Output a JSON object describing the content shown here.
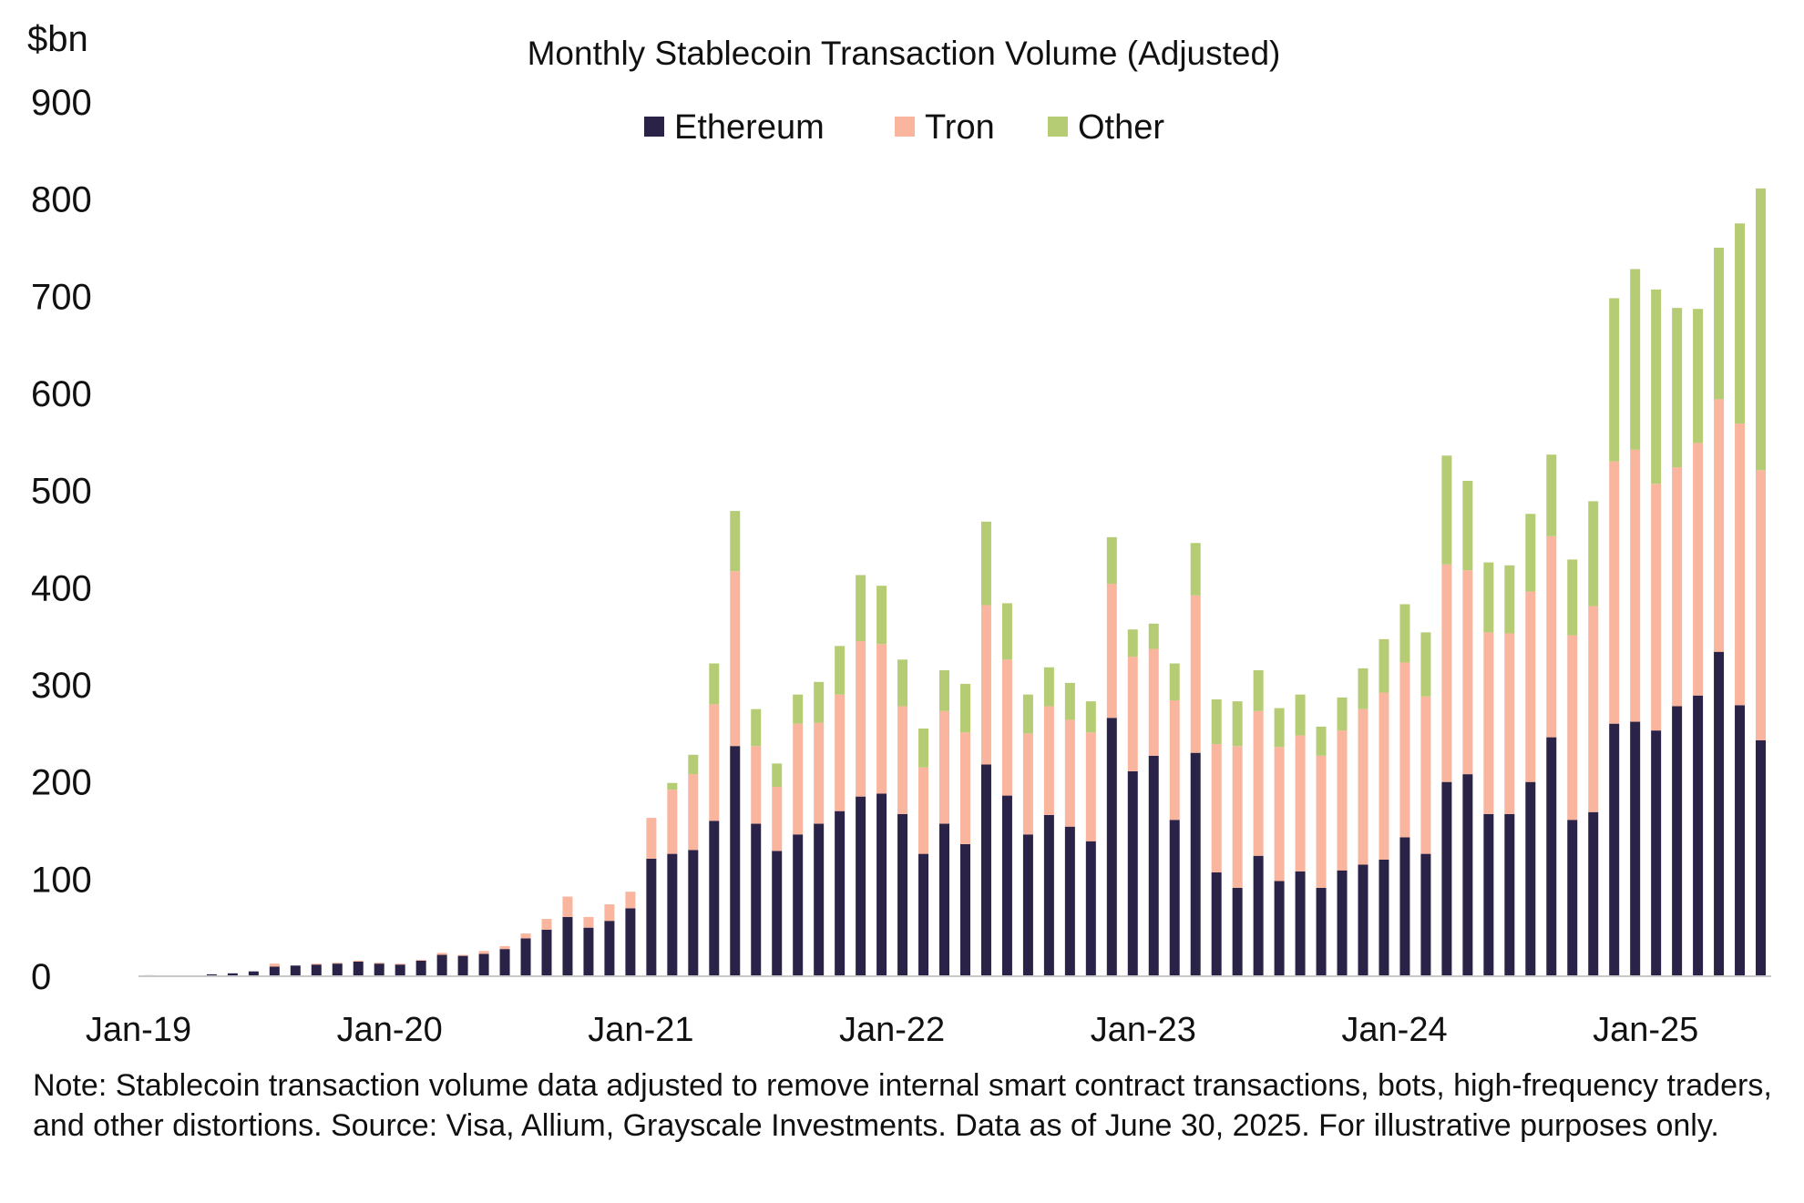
{
  "chart_data": {
    "type": "bar",
    "stacked": true,
    "title": "Monthly Stablecoin Transaction Volume (Adjusted)",
    "unit_label": "$bn",
    "xlabel": "",
    "ylabel": "",
    "ylim": [
      0,
      900
    ],
    "yticks": [
      0,
      100,
      200,
      300,
      400,
      500,
      600,
      700,
      800,
      900
    ],
    "x_tick_labels": [
      "Jan-19",
      "Jan-20",
      "Jan-21",
      "Jan-22",
      "Jan-23",
      "Jan-24",
      "Jan-25"
    ],
    "x_tick_indices": [
      0,
      12,
      24,
      36,
      48,
      60,
      72
    ],
    "grid": false,
    "legend_position": "top-center",
    "colors": {
      "Ethereum": "#2b2347",
      "Tron": "#f9b59d",
      "Other": "#b5cc74",
      "axis": "#c8c8c8"
    },
    "categories": [
      "Jan-19",
      "Feb-19",
      "Mar-19",
      "Apr-19",
      "May-19",
      "Jun-19",
      "Jul-19",
      "Aug-19",
      "Sep-19",
      "Oct-19",
      "Nov-19",
      "Dec-19",
      "Jan-20",
      "Feb-20",
      "Mar-20",
      "Apr-20",
      "May-20",
      "Jun-20",
      "Jul-20",
      "Aug-20",
      "Sep-20",
      "Oct-20",
      "Nov-20",
      "Dec-20",
      "Jan-21",
      "Feb-21",
      "Mar-21",
      "Apr-21",
      "May-21",
      "Jun-21",
      "Jul-21",
      "Aug-21",
      "Sep-21",
      "Oct-21",
      "Nov-21",
      "Dec-21",
      "Jan-22",
      "Feb-22",
      "Mar-22",
      "Apr-22",
      "May-22",
      "Jun-22",
      "Jul-22",
      "Aug-22",
      "Sep-22",
      "Oct-22",
      "Nov-22",
      "Dec-22",
      "Jan-23",
      "Feb-23",
      "Mar-23",
      "Apr-23",
      "May-23",
      "Jun-23",
      "Jul-23",
      "Aug-23",
      "Sep-23",
      "Oct-23",
      "Nov-23",
      "Dec-23",
      "Jan-24",
      "Feb-24",
      "Mar-24",
      "Apr-24",
      "May-24",
      "Jun-24",
      "Jul-24",
      "Aug-24",
      "Sep-24",
      "Oct-24",
      "Nov-24",
      "Dec-24",
      "Jan-25",
      "Feb-25",
      "Mar-25",
      "Apr-25",
      "May-25",
      "Jun-25"
    ],
    "series": [
      {
        "name": "Ethereum",
        "values": [
          1,
          0,
          0,
          2,
          3,
          5,
          10,
          11,
          12,
          13,
          15,
          13,
          12,
          16,
          22,
          21,
          23,
          28,
          39,
          48,
          61,
          50,
          57,
          70,
          121,
          126,
          130,
          160,
          237,
          157,
          129,
          146,
          157,
          170,
          185,
          188,
          167,
          126,
          157,
          136,
          218,
          186,
          146,
          166,
          154,
          139,
          266,
          211,
          227,
          161,
          230,
          107,
          91,
          124,
          98,
          108,
          91,
          109,
          115,
          120,
          143,
          126,
          200,
          208,
          167,
          167,
          200,
          246,
          161,
          169,
          260,
          262,
          253,
          278,
          289,
          334,
          279,
          243
        ]
      },
      {
        "name": "Tron",
        "values": [
          0,
          0,
          0,
          0,
          0,
          0,
          3,
          0,
          1,
          1,
          1,
          1,
          1,
          1,
          2,
          1,
          3,
          3,
          5,
          11,
          21,
          11,
          17,
          17,
          42,
          66,
          78,
          120,
          180,
          80,
          66,
          114,
          104,
          120,
          160,
          154,
          111,
          89,
          116,
          115,
          164,
          140,
          104,
          112,
          110,
          112,
          138,
          118,
          110,
          123,
          162,
          132,
          146,
          149,
          138,
          140,
          136,
          144,
          160,
          172,
          180,
          162,
          224,
          210,
          187,
          186,
          196,
          207,
          190,
          212,
          270,
          280,
          254,
          246,
          260,
          260,
          290,
          278
        ]
      },
      {
        "name": "Other",
        "values": [
          0,
          0,
          0,
          0,
          0,
          0,
          0,
          0,
          0,
          0,
          0,
          0,
          0,
          0,
          0,
          0,
          0,
          0,
          0,
          0,
          0,
          0,
          0,
          0,
          0,
          7,
          20,
          42,
          62,
          38,
          24,
          30,
          42,
          50,
          68,
          60,
          48,
          40,
          42,
          50,
          86,
          58,
          40,
          40,
          38,
          32,
          48,
          28,
          26,
          38,
          54,
          46,
          46,
          42,
          40,
          42,
          30,
          34,
          42,
          55,
          60,
          66,
          112,
          92,
          72,
          70,
          80,
          84,
          78,
          108,
          168,
          186,
          200,
          164,
          138,
          156,
          206,
          290
        ]
      }
    ],
    "note": "Note: Stablecoin transaction volume data adjusted to remove internal smart contract transactions, bots, high-frequency traders, and other distortions. Source: Visa, Allium, Grayscale Investments. Data as of June 30, 2025. For illustrative purposes only."
  }
}
